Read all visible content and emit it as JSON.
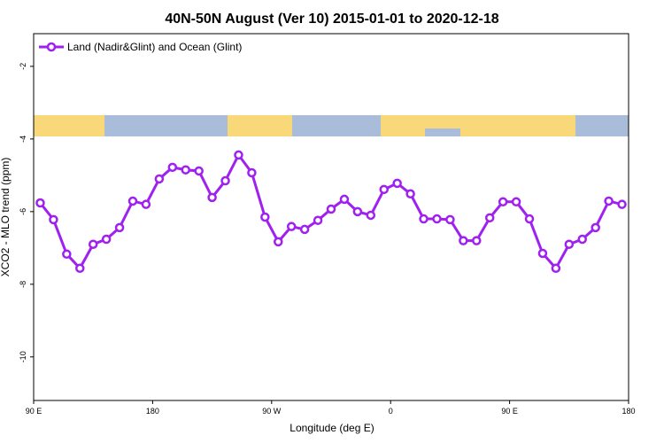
{
  "chart_data": {
    "type": "line",
    "title": "40N-50N August (Ver 10)   2015-01-01 to 2020-12-18",
    "x_label": "Longitude (deg E)",
    "y_label": "XCO2 - MLO trend (ppm)",
    "legend_position": "top-left",
    "xlim": [
      90,
      540
    ],
    "ylim": [
      -11.2,
      -1.1
    ],
    "xticks": [
      {
        "value": 90,
        "label": "90 E"
      },
      180,
      {
        "value": 270,
        "label": "90 W"
      },
      {
        "value": 360,
        "label": "0"
      },
      {
        "value": 450,
        "label": "90 E"
      },
      {
        "value": 540,
        "label": "180"
      }
    ],
    "yticks": [
      -2,
      -4,
      -6,
      -8,
      -10
    ],
    "x": [
      95,
      105,
      115,
      125,
      135,
      145,
      155,
      165,
      175,
      185,
      195,
      205,
      215,
      225,
      235,
      245,
      255,
      265,
      275,
      285,
      295,
      305,
      315,
      325,
      335,
      345,
      355,
      365,
      375,
      385,
      395,
      405,
      415,
      425,
      435,
      445,
      455,
      465,
      475,
      485,
      495,
      505,
      515,
      525,
      535
    ],
    "series": [
      {
        "name": "Land (Nadir&Glint) and Ocean (Glint)",
        "color": "#a020f0",
        "values": [
          -5.76,
          -6.22,
          -7.17,
          -7.56,
          -6.9,
          -6.76,
          -6.44,
          -5.71,
          -5.8,
          -5.1,
          -4.78,
          -4.85,
          -4.88,
          -5.61,
          -5.15,
          -4.44,
          -4.93,
          -6.15,
          -6.83,
          -6.41,
          -6.49,
          -6.24,
          -5.93,
          -5.66,
          -6.0,
          -6.1,
          -5.39,
          -5.22,
          -5.51,
          -6.2,
          -6.2,
          -6.22,
          -6.8,
          -6.8,
          -6.17,
          -5.73,
          -5.73,
          -6.2,
          -7.15,
          -7.56,
          -6.9,
          -6.76,
          -6.44,
          -5.71,
          -5.8
        ]
      }
    ]
  }
}
